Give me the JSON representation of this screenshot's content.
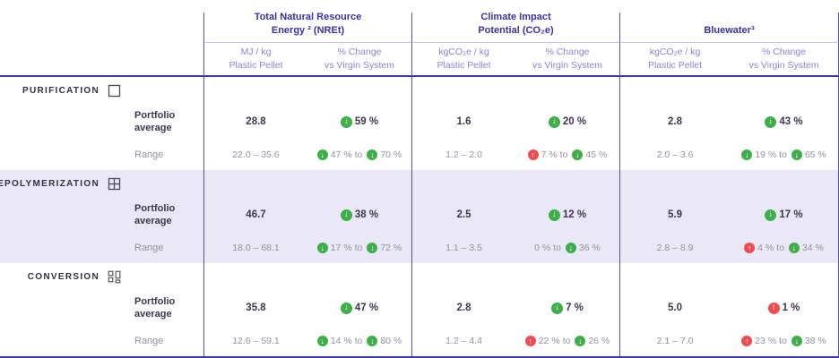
{
  "colors": {
    "accent_line": "#564ac8",
    "dark_rule": "#4339ac",
    "group_header_text": "#3b31a3",
    "subheader_text": "#8d83da",
    "highlight_band": "#eae8f6",
    "strong_text": "#3d3650",
    "muted_text": "#95929f",
    "decrease_green": "#3fae4a",
    "increase_red": "#ef4b52"
  },
  "header": {
    "groups": [
      {
        "title": [
          "Total Natural Resource",
          "Energy ² (NREt)"
        ],
        "subcolumns": [
          [
            "MJ / kg",
            "Plastic Pellet"
          ],
          [
            "% Change",
            "vs Virgin System"
          ]
        ]
      },
      {
        "title": [
          "Climate Impact",
          "Potential (CO₂e)"
        ],
        "subcolumns": [
          [
            "kgCO₂e / kg",
            "Plastic Pellet"
          ],
          [
            "% Change",
            "vs Virgin System"
          ]
        ]
      },
      {
        "title": [
          "Bluewater³"
        ],
        "subcolumns": [
          [
            "kgCO₂e / kg",
            "Plastic Pellet"
          ],
          [
            "% Change",
            "vs Virgin System"
          ]
        ]
      }
    ]
  },
  "sections": [
    {
      "label": "PURIFICATION",
      "icon": "square-outline-icon",
      "highlight": false,
      "rows": [
        {
          "type": "average",
          "label": [
            "Portfolio",
            "average"
          ],
          "cells": [
            {
              "kind": "value",
              "text": "28.8"
            },
            {
              "kind": "pct",
              "segments": [
                {
                  "arrow": "down",
                  "text": "59 %"
                }
              ]
            },
            {
              "kind": "value",
              "text": "1.6"
            },
            {
              "kind": "pct",
              "segments": [
                {
                  "arrow": "down",
                  "text": "20 %"
                }
              ]
            },
            {
              "kind": "value",
              "text": "2.8"
            },
            {
              "kind": "pct",
              "segments": [
                {
                  "arrow": "down",
                  "text": "43 %"
                }
              ]
            }
          ]
        },
        {
          "type": "range",
          "label": [
            "Range"
          ],
          "cells": [
            {
              "kind": "value",
              "text": "22.0 – 35.6"
            },
            {
              "kind": "pct",
              "segments": [
                {
                  "arrow": "down",
                  "text": "47 % to"
                },
                {
                  "arrow": "down",
                  "text": "70 %"
                }
              ]
            },
            {
              "kind": "value",
              "text": "1.2 – 2.0"
            },
            {
              "kind": "pct",
              "segments": [
                {
                  "arrow": "up",
                  "text": "7 % to"
                },
                {
                  "arrow": "down",
                  "text": "45 %"
                }
              ]
            },
            {
              "kind": "value",
              "text": "2.0 – 3.6"
            },
            {
              "kind": "pct",
              "segments": [
                {
                  "arrow": "down",
                  "text": "19 % to"
                },
                {
                  "arrow": "down",
                  "text": "65 %"
                }
              ]
            }
          ]
        }
      ]
    },
    {
      "label": "DEPOLYMERIZATION",
      "icon": "grid-2x2-icon",
      "highlight": true,
      "rows": [
        {
          "type": "average",
          "label": [
            "Portfolio",
            "average"
          ],
          "cells": [
            {
              "kind": "value",
              "text": "46.7"
            },
            {
              "kind": "pct",
              "segments": [
                {
                  "arrow": "down",
                  "text": "38 %"
                }
              ]
            },
            {
              "kind": "value",
              "text": "2.5"
            },
            {
              "kind": "pct",
              "segments": [
                {
                  "arrow": "down",
                  "text": "12 %"
                }
              ]
            },
            {
              "kind": "value",
              "text": "5.9"
            },
            {
              "kind": "pct",
              "segments": [
                {
                  "arrow": "down",
                  "text": "17 %"
                }
              ]
            }
          ]
        },
        {
          "type": "range",
          "label": [
            "Range"
          ],
          "cells": [
            {
              "kind": "value",
              "text": "18.0 – 68.1"
            },
            {
              "kind": "pct",
              "segments": [
                {
                  "arrow": "down",
                  "text": "17 % to"
                },
                {
                  "arrow": "down",
                  "text": "72 %"
                }
              ]
            },
            {
              "kind": "value",
              "text": "1.1 – 3.5"
            },
            {
              "kind": "pct",
              "segments": [
                {
                  "arrow": null,
                  "text": "0 % to"
                },
                {
                  "arrow": "down",
                  "text": "36 %"
                }
              ]
            },
            {
              "kind": "value",
              "text": "2.8 – 8.9"
            },
            {
              "kind": "pct",
              "segments": [
                {
                  "arrow": "up",
                  "text": "4 % to"
                },
                {
                  "arrow": "down",
                  "text": "34 %"
                }
              ]
            }
          ]
        }
      ]
    },
    {
      "label": "CONVERSION",
      "icon": "fragments-icon",
      "highlight": false,
      "rows": [
        {
          "type": "average",
          "label": [
            "Portfolio",
            "average"
          ],
          "cells": [
            {
              "kind": "value",
              "text": "35.8"
            },
            {
              "kind": "pct",
              "segments": [
                {
                  "arrow": "down",
                  "text": "47 %"
                }
              ]
            },
            {
              "kind": "value",
              "text": "2.8"
            },
            {
              "kind": "pct",
              "segments": [
                {
                  "arrow": "down",
                  "text": "7 %"
                }
              ]
            },
            {
              "kind": "value",
              "text": "5.0"
            },
            {
              "kind": "pct",
              "segments": [
                {
                  "arrow": "up",
                  "text": "1 %"
                }
              ]
            }
          ]
        },
        {
          "type": "range",
          "label": [
            "Range"
          ],
          "cells": [
            {
              "kind": "value",
              "text": "12.6 – 59.1"
            },
            {
              "kind": "pct",
              "segments": [
                {
                  "arrow": "down",
                  "text": "14 % to"
                },
                {
                  "arrow": "down",
                  "text": "80 %"
                }
              ]
            },
            {
              "kind": "value",
              "text": "1.2 – 4.4"
            },
            {
              "kind": "pct",
              "segments": [
                {
                  "arrow": "up",
                  "text": "22 % to"
                },
                {
                  "arrow": "down",
                  "text": "26 %"
                }
              ]
            },
            {
              "kind": "value",
              "text": "2.1 – 7.0"
            },
            {
              "kind": "pct",
              "segments": [
                {
                  "arrow": "up",
                  "text": "23 % to"
                },
                {
                  "arrow": "down",
                  "text": "38 %"
                }
              ]
            }
          ]
        }
      ]
    }
  ]
}
